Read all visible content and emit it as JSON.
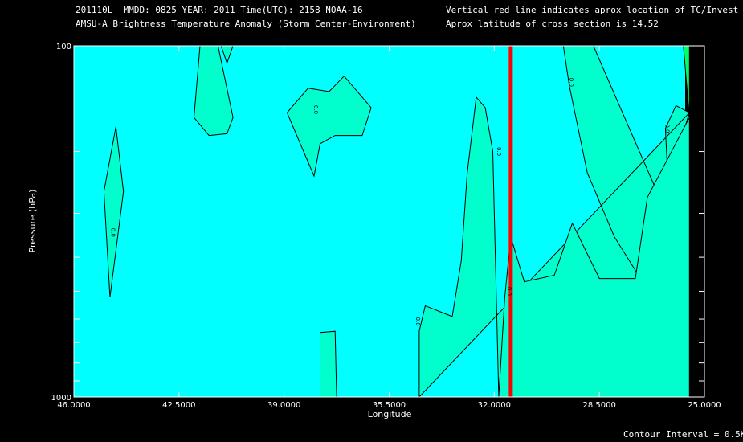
{
  "header": {
    "line1_left": "201110L  MMDD: 0825 YEAR: 2011 Time(UTC): 2158 NOAA-16",
    "line2_left": "AMSU-A Brightness Temperature Anomaly (Storm Center-Environment)",
    "line1_right": "Vertical red line indicates aprox location of TC/Invest",
    "line2_right": "Aprox latitude of cross section is 14.52"
  },
  "footer": {
    "contour_interval": "Contour Interval = 0.5K"
  },
  "colors": {
    "background": "#00ffff",
    "anomaly_fill": "#00ffcc",
    "storm_line": "#ff0000",
    "corner_fill": "#00ff66"
  },
  "chart_data": {
    "type": "contour",
    "xlabel": "Longitude",
    "ylabel": "Pressure (hPa)",
    "xlim": [
      46.0,
      25.0
    ],
    "ylim": [
      1000,
      100
    ],
    "y_scale": "log",
    "x_ticks": [
      "46.0000",
      "42.5000",
      "39.0000",
      "35.5000",
      "32.0000",
      "28.5000",
      "25.0000"
    ],
    "x_tick_values": [
      46.0,
      42.5,
      39.0,
      35.5,
      32.0,
      28.5,
      25.0
    ],
    "y_ticks": [
      "100",
      "1000"
    ],
    "y_tick_values": [
      100,
      1000
    ],
    "y_minor_ticks": [
      200,
      300,
      400,
      500,
      600,
      700,
      800,
      900
    ],
    "storm_longitude": 31.45,
    "contour_interval_K": 0.5,
    "contour_labels": [
      {
        "text": "0.0",
        "lon": 44.75,
        "p": 340
      },
      {
        "text": "0.0",
        "lon": 38.0,
        "p": 152
      },
      {
        "text": "0.0",
        "lon": 31.9,
        "p": 200
      },
      {
        "text": "0.0",
        "lon": 34.6,
        "p": 610
      },
      {
        "text": "0.0",
        "lon": 31.55,
        "p": 500
      },
      {
        "text": "0.0",
        "lon": 29.5,
        "p": 127
      },
      {
        "text": "0.0",
        "lon": 26.3,
        "p": 172
      }
    ],
    "regions": [
      {
        "name": "anomaly-left-spike",
        "fill": "anomaly",
        "points": [
          [
            45.0,
            260
          ],
          [
            44.6,
            170
          ],
          [
            44.35,
            260
          ],
          [
            44.8,
            520
          ]
        ]
      },
      {
        "name": "anomaly-top-blob",
        "fill": "anomaly",
        "points": [
          [
            42.0,
            160
          ],
          [
            41.8,
            100
          ],
          [
            41.2,
            100
          ],
          [
            40.7,
            160
          ],
          [
            40.9,
            178
          ],
          [
            41.5,
            180
          ]
        ]
      },
      {
        "name": "anomaly-top-small",
        "fill": "anomaly",
        "points": [
          [
            41.1,
            100
          ],
          [
            40.7,
            100
          ],
          [
            40.9,
            112
          ]
        ]
      },
      {
        "name": "anomaly-mid-blob",
        "fill": "anomaly",
        "points": [
          [
            38.9,
            155
          ],
          [
            38.2,
            132
          ],
          [
            37.5,
            135
          ],
          [
            37.0,
            122
          ],
          [
            36.1,
            150
          ],
          [
            36.4,
            180
          ],
          [
            37.3,
            180
          ],
          [
            37.8,
            190
          ],
          [
            38.0,
            235
          ]
        ]
      },
      {
        "name": "anomaly-bottom-pillar",
        "fill": "anomaly",
        "points": [
          [
            37.8,
            1000
          ],
          [
            37.8,
            655
          ],
          [
            37.3,
            650
          ],
          [
            37.25,
            1000
          ]
        ]
      },
      {
        "name": "anomaly-right-region",
        "fill": "anomaly",
        "points": [
          [
            34.5,
            1000
          ],
          [
            34.5,
            650
          ],
          [
            34.3,
            550
          ],
          [
            33.4,
            590
          ],
          [
            33.1,
            410
          ],
          [
            32.9,
            230
          ],
          [
            32.6,
            140
          ],
          [
            32.3,
            150
          ],
          [
            32.05,
            200
          ],
          [
            31.85,
            1000
          ],
          [
            25.5,
            1000
          ],
          [
            25.5,
            155
          ],
          [
            25.95,
            148
          ],
          [
            26.3,
            172
          ],
          [
            26.0,
            580
          ],
          [
            26.5,
            270
          ],
          [
            28.7,
            100
          ],
          [
            29.7,
            100
          ],
          [
            29.5,
            130
          ],
          [
            28.9,
            230
          ],
          [
            28.0,
            350
          ],
          [
            27.2,
            450
          ],
          [
            25.5,
            155
          ]
        ]
      },
      {
        "name": "anomaly-storm-tongue",
        "fill": "anomaly",
        "points": [
          [
            31.85,
            1000
          ],
          [
            31.65,
            520
          ],
          [
            31.45,
            350
          ],
          [
            31.0,
            470
          ],
          [
            30.0,
            450
          ],
          [
            29.4,
            320
          ],
          [
            28.5,
            460
          ],
          [
            27.3,
            460
          ],
          [
            26.9,
            270
          ],
          [
            25.5,
            160
          ],
          [
            25.5,
            1000
          ]
        ]
      },
      {
        "name": "corner-triangle",
        "fill": "corner",
        "points": [
          [
            25.7,
            100
          ],
          [
            25.5,
            100
          ],
          [
            25.5,
            160
          ]
        ]
      }
    ]
  }
}
